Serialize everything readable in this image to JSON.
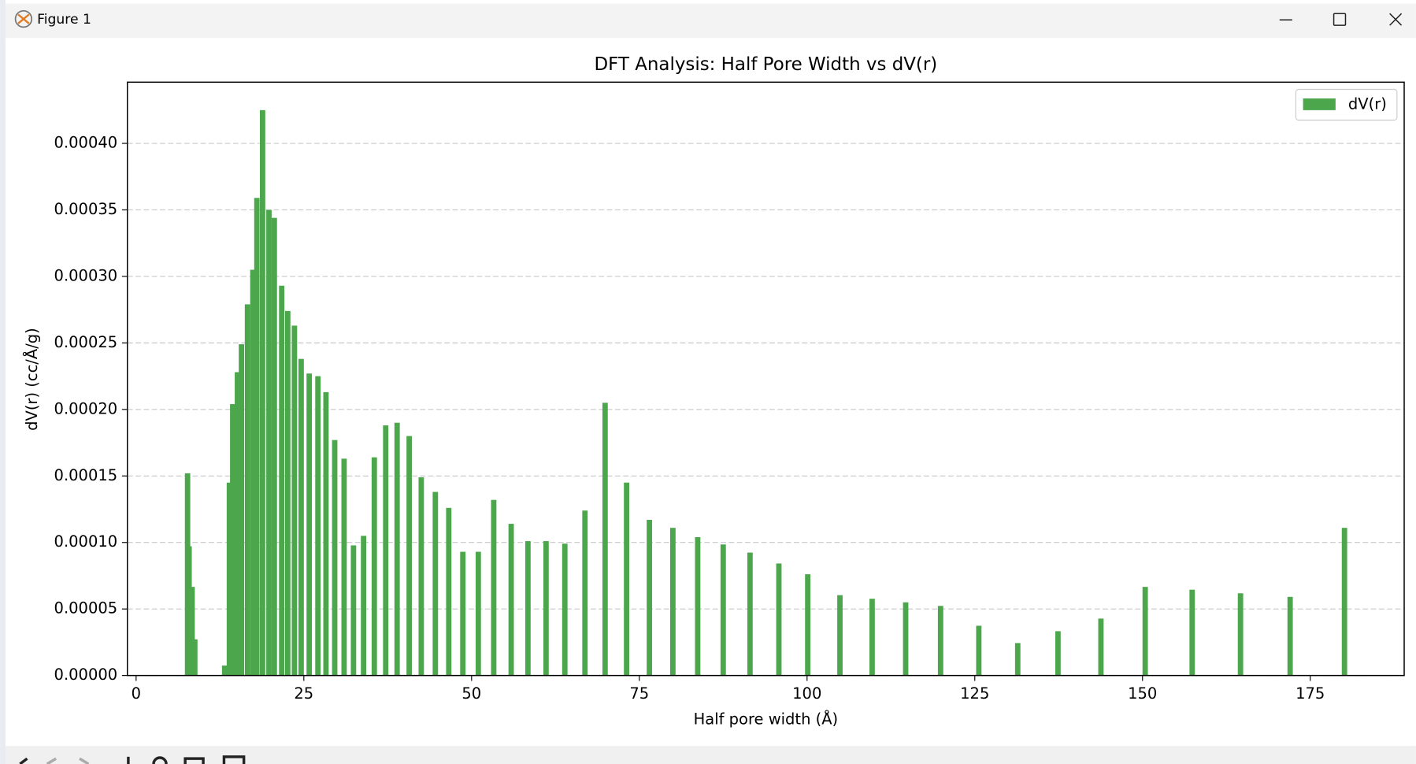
{
  "window": {
    "title": "Figure 1"
  },
  "chart_data": {
    "type": "bar",
    "title": "DFT Analysis: Half Pore Width vs dV(r)",
    "xlabel": "Half pore width (Å)",
    "ylabel": "dV(r) (cc/Å/g)",
    "x": [
      7.67,
      7.9,
      8.35,
      8.75,
      13.2,
      13.9,
      14.4,
      15.1,
      15.7,
      16.6,
      17.4,
      18.0,
      18.85,
      19.8,
      20.6,
      21.7,
      22.6,
      23.6,
      24.6,
      25.8,
      27.1,
      28.3,
      29.6,
      31.0,
      32.4,
      33.9,
      35.5,
      37.2,
      38.9,
      40.7,
      42.5,
      44.6,
      46.6,
      48.7,
      51.0,
      53.3,
      55.9,
      58.4,
      61.1,
      63.9,
      66.9,
      69.9,
      73.1,
      76.5,
      80.0,
      83.7,
      87.5,
      91.5,
      95.8,
      100.1,
      104.9,
      109.7,
      114.7,
      119.9,
      125.6,
      131.4,
      137.4,
      143.8,
      150.4,
      157.4,
      164.6,
      172.0,
      180.1
    ],
    "series": [
      {
        "name": "dV(r)",
        "color": "#4ca64c",
        "values": [
          0.000152,
          9.71e-05,
          6.66e-05,
          2.72e-05,
          7.5e-06,
          0.000145,
          0.000204,
          0.000228,
          0.000249,
          0.000279,
          0.000305,
          0.000359,
          0.000425,
          0.00035,
          0.000344,
          0.000293,
          0.000274,
          0.000263,
          0.000238,
          0.000227,
          0.000225,
          0.000213,
          0.000177,
          0.000163,
          9.78e-05,
          0.000105,
          0.000164,
          0.000188,
          0.00019,
          0.00018,
          0.000149,
          0.000138,
          0.000126,
          9.3e-05,
          9.3e-05,
          0.000132,
          0.000114,
          0.000101,
          0.000101,
          9.91e-05,
          0.000124,
          0.000205,
          0.000145,
          0.000117,
          0.000111,
          0.000104,
          9.85e-05,
          9.24e-05,
          8.42e-05,
          7.61e-05,
          6.04e-05,
          5.77e-05,
          5.5e-05,
          5.23e-05,
          3.74e-05,
          2.44e-05,
          3.33e-05,
          4.28e-05,
          6.66e-05,
          6.45e-05,
          6.18e-05,
          5.91e-05,
          0.000111
        ]
      }
    ],
    "xlim": [
      -1.3,
      189.0
    ],
    "ylim": [
      0,
      0.000446
    ],
    "xticks": [
      0,
      25,
      50,
      75,
      100,
      125,
      150,
      175
    ],
    "yticks": [
      {
        "value": 0,
        "label": "0.00000"
      },
      {
        "value": 5e-05,
        "label": "0.00005"
      },
      {
        "value": 0.0001,
        "label": "0.00010"
      },
      {
        "value": 0.00015,
        "label": "0.00015"
      },
      {
        "value": 0.0002,
        "label": "0.00020"
      },
      {
        "value": 0.00025,
        "label": "0.00025"
      },
      {
        "value": 0.0003,
        "label": "0.00030"
      },
      {
        "value": 0.00035,
        "label": "0.00035"
      },
      {
        "value": 0.0004,
        "label": "0.00040"
      }
    ],
    "grid": true,
    "legend": "upper right"
  }
}
